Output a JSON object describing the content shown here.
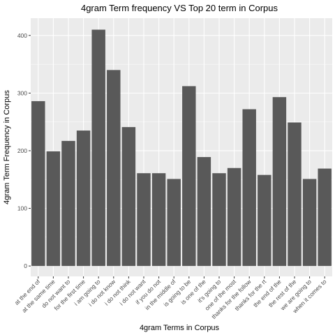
{
  "chart_data": {
    "type": "bar",
    "title": "4gram Term frequency VS Top 20 term in Corpus",
    "xlabel": "4gram Terms in Corpus",
    "ylabel": "4gram Term Frequency in Corpus",
    "ylim": [
      -18,
      430
    ],
    "yticks": [
      0,
      100,
      200,
      300,
      400
    ],
    "grid": true,
    "categories": [
      "at the end of",
      "at the same time",
      "do not want to",
      "for the first time",
      "i am going to",
      "i do not know",
      "i do not think",
      "i do not want",
      "if you do not",
      "in the middle of",
      "is going to be",
      "is one of the",
      "it's going to",
      "one of the most",
      "thanks for the follow",
      "thanks for the rt",
      "the end of the",
      "the rest of the",
      "we are going to",
      "when it comes to"
    ],
    "values": [
      286,
      199,
      217,
      235,
      410,
      340,
      241,
      161,
      161,
      151,
      312,
      189,
      161,
      170,
      272,
      158,
      293,
      249,
      151,
      169
    ],
    "colors": {
      "bar": "#595959",
      "panel": "#ebebeb",
      "grid_major": "#ffffff",
      "tick": "#333333"
    }
  }
}
